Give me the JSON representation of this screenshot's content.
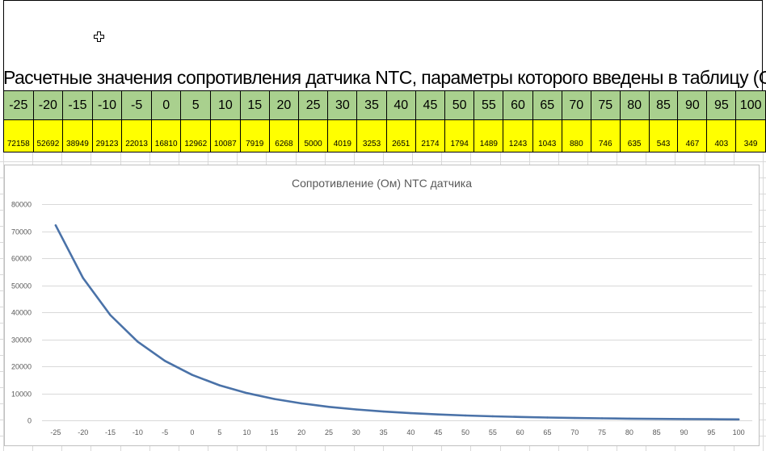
{
  "title": "Расчетные значения сопротивления датчика NTC, параметры которого введены в таблицу (Ом)",
  "table": {
    "temperatures": [
      "-25",
      "-20",
      "-15",
      "-10",
      "-5",
      "0",
      "5",
      "10",
      "15",
      "20",
      "25",
      "30",
      "35",
      "40",
      "45",
      "50",
      "55",
      "60",
      "65",
      "70",
      "75",
      "80",
      "85",
      "90",
      "95",
      "100"
    ],
    "resistances": [
      "72158",
      "52692",
      "38949",
      "29123",
      "22013",
      "16810",
      "12962",
      "10087",
      "7919",
      "6268",
      "5000",
      "4019",
      "3253",
      "2651",
      "2174",
      "1794",
      "1489",
      "1243",
      "1043",
      "880",
      "746",
      "635",
      "543",
      "467",
      "403",
      "349"
    ]
  },
  "colors": {
    "header_row": "#a9d08e",
    "value_row": "#ffff00",
    "series_line": "#4a72a8",
    "gridline": "#d9d9d9"
  },
  "icons": {
    "cursor": "cell-select-cursor-icon"
  },
  "chart_data": {
    "type": "line",
    "title": "Сопротивление (Ом) NTC датчика",
    "xlabel": "",
    "ylabel": "",
    "categories": [
      "-25",
      "-20",
      "-15",
      "-10",
      "-5",
      "0",
      "5",
      "10",
      "15",
      "20",
      "25",
      "30",
      "35",
      "40",
      "45",
      "50",
      "55",
      "60",
      "65",
      "70",
      "75",
      "80",
      "85",
      "90",
      "95",
      "100"
    ],
    "series": [
      {
        "values": [
          72158,
          52692,
          38949,
          29123,
          22013,
          16810,
          12962,
          10087,
          7919,
          6268,
          5000,
          4019,
          3253,
          2651,
          2174,
          1794,
          1489,
          1243,
          1043,
          880,
          746,
          635,
          543,
          467,
          403,
          349
        ]
      }
    ],
    "ylim": [
      0,
      80000
    ],
    "yticks": [
      "0",
      "10000",
      "20000",
      "30000",
      "40000",
      "50000",
      "60000",
      "70000",
      "80000"
    ],
    "grid": true,
    "legend": "none"
  }
}
